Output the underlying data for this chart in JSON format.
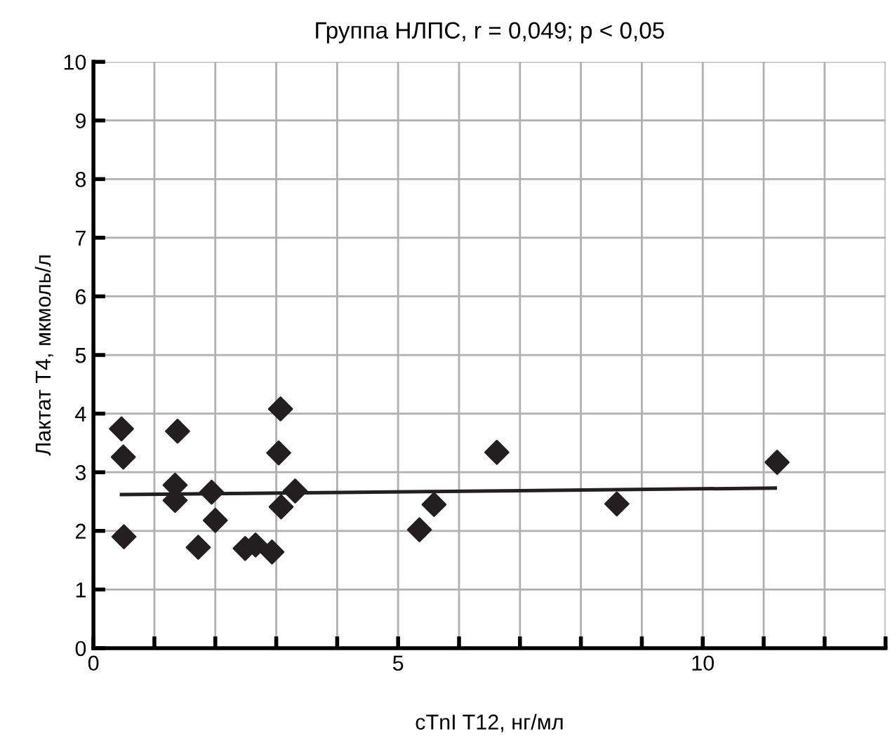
{
  "chart_data": {
    "type": "scatter",
    "title": "Группа НЛПС, r = 0,049; p < 0,05",
    "xlabel": "cTnI T12, нг/мл",
    "ylabel": "Лактат Т4, мкмоль/л",
    "xlim": [
      0,
      13
    ],
    "ylim": [
      0,
      10
    ],
    "xticks": [
      0,
      {
        "value": 1,
        "label": null
      },
      {
        "value": 2,
        "label": null
      },
      {
        "value": 3,
        "label": null
      },
      {
        "value": 4,
        "label": null
      },
      5,
      {
        "value": 6,
        "label": null
      },
      {
        "value": 7,
        "label": null
      },
      {
        "value": 8,
        "label": null
      },
      {
        "value": 9,
        "label": null
      },
      10,
      {
        "value": 11,
        "label": null
      },
      {
        "value": 12,
        "label": null
      },
      {
        "value": 13,
        "label": null
      }
    ],
    "yticks": [
      0,
      1,
      2,
      3,
      4,
      5,
      6,
      7,
      8,
      9,
      10
    ],
    "grid": true,
    "series": [
      {
        "marker": "diamond",
        "color": "#231f20",
        "x": [
          0.46,
          0.49,
          0.5,
          1.38,
          1.34,
          1.34,
          1.72,
          1.94,
          2.0,
          2.49,
          2.66,
          2.93,
          3.07,
          3.04,
          3.08,
          3.31,
          5.35,
          5.59,
          6.62,
          8.59,
          11.22
        ],
        "values": [
          3.74,
          3.26,
          1.9,
          3.7,
          2.78,
          2.52,
          1.72,
          2.66,
          2.18,
          1.7,
          1.76,
          1.64,
          4.08,
          3.33,
          2.41,
          2.68,
          2.02,
          2.45,
          3.34,
          2.46,
          3.17
        ]
      },
      {
        "type": "line",
        "color": "#231f20",
        "x": [
          0.46,
          11.19
        ],
        "values": [
          2.62,
          2.73
        ]
      }
    ]
  }
}
